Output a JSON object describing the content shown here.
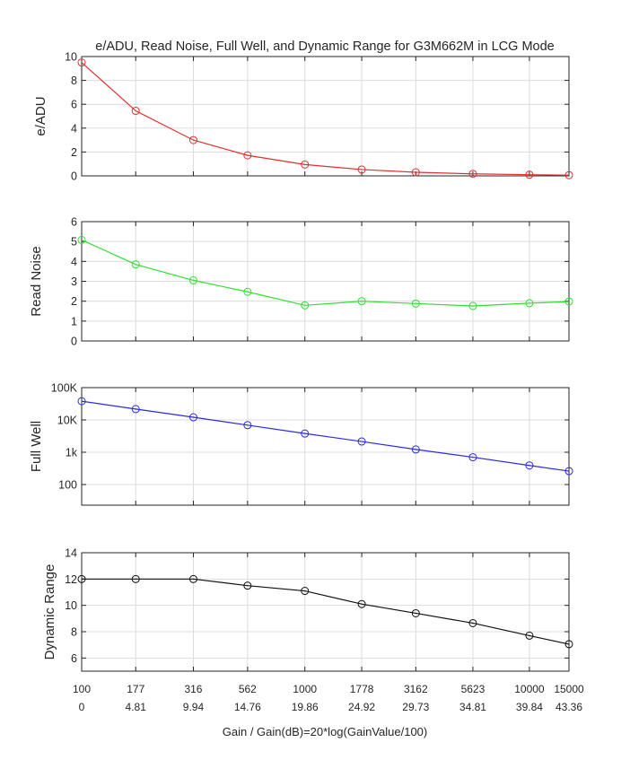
{
  "chart_data": {
    "type": "line",
    "title": "e/ADU, Read Noise, Full Well, and Dynamic Range for G3M662M in LCG Mode",
    "xlabel": "Gain / Gain(dB)=20*log(GainValue/100)",
    "x_gain_labels": [
      "100",
      "177",
      "316",
      "562",
      "1000",
      "1778",
      "3162",
      "5623",
      "10000",
      "15000"
    ],
    "x_db_labels": [
      "0",
      "4.81",
      "9.94",
      "14.76",
      "19.86",
      "24.92",
      "29.73",
      "34.81",
      "39.84",
      "43.36"
    ],
    "x_db": [
      0,
      4.81,
      9.94,
      14.76,
      19.86,
      24.92,
      29.73,
      34.81,
      39.84,
      43.36
    ],
    "grid": true,
    "panels": [
      {
        "ylabel": "e/ADU",
        "color": "#e03030",
        "scale": "linear",
        "ylim": [
          0,
          10
        ],
        "yticks": [
          0,
          2,
          4,
          6,
          8,
          10
        ],
        "ytick_labels": [
          "0",
          "2",
          "4",
          "6",
          "8",
          "10"
        ],
        "values": [
          9.5,
          5.45,
          3.0,
          1.72,
          0.95,
          0.53,
          0.3,
          0.17,
          0.1,
          0.06
        ]
      },
      {
        "ylabel": "Read Noise",
        "color": "#33dd33",
        "scale": "linear",
        "ylim": [
          0,
          6
        ],
        "yticks": [
          0,
          1,
          2,
          3,
          4,
          5,
          6
        ],
        "ytick_labels": [
          "0",
          "1",
          "2",
          "3",
          "4",
          "5",
          "6"
        ],
        "values": [
          5.08,
          3.85,
          3.05,
          2.47,
          1.79,
          2.0,
          1.88,
          1.76,
          1.9,
          1.98
        ]
      },
      {
        "ylabel": "Full Well",
        "color": "#2a2ae0",
        "scale": "log",
        "ylim": [
          23,
          100000
        ],
        "yticks": [
          100,
          1000,
          10000,
          100000
        ],
        "ytick_labels": [
          "100",
          "1k",
          "10K",
          "100K"
        ],
        "values": [
          38000,
          21700,
          12100,
          6900,
          3800,
          2150,
          1220,
          700,
          390,
          260
        ]
      },
      {
        "ylabel": "Dynamic Range",
        "color": "#111111",
        "scale": "linear",
        "ylim": [
          5,
          14
        ],
        "yticks": [
          6,
          8,
          10,
          12,
          14
        ],
        "ytick_labels": [
          "6",
          "8",
          "10",
          "12",
          "14"
        ],
        "values": [
          12.0,
          12.0,
          12.0,
          11.5,
          11.1,
          10.1,
          9.4,
          8.65,
          7.7,
          7.05
        ]
      }
    ]
  }
}
